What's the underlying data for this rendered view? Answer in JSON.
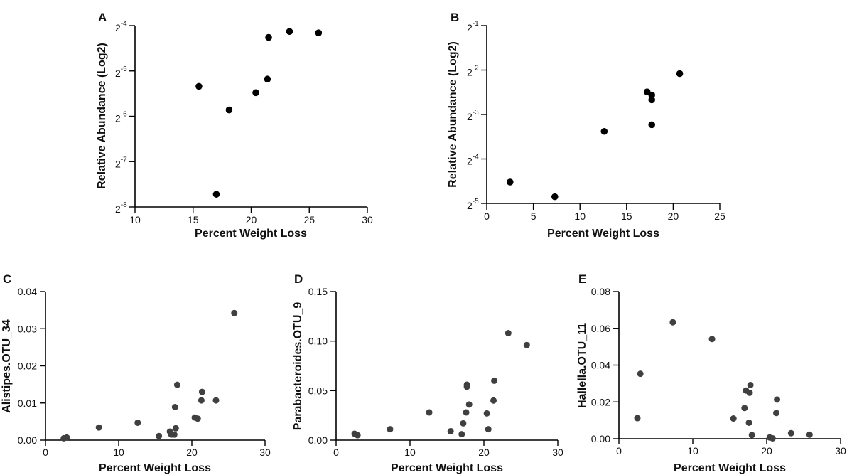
{
  "chart_data": [
    {
      "panel": "A",
      "type": "scatter",
      "title": "",
      "xlabel": "Percent Weight Loss",
      "ylabel": "Relative Abundance  (Log2)",
      "y_scale": "log2",
      "xlim": [
        10,
        30
      ],
      "ylim_exponents": [
        -8,
        -4
      ],
      "x_ticks": [
        10,
        15,
        20,
        25,
        30
      ],
      "y_tick_exponents": [
        -8,
        -7,
        -6,
        -5,
        -4
      ],
      "y_tick_base": "2",
      "y_tick_exp_labels": [
        "-8",
        "-7",
        "-6",
        "-5",
        "-4"
      ],
      "marker_color": "#000000",
      "x": [
        15.5,
        17.0,
        18.1,
        20.4,
        21.4,
        21.5,
        23.3,
        25.8
      ],
      "y_log2": [
        -5.34,
        -7.72,
        -5.86,
        -5.48,
        -5.18,
        -4.26,
        -4.13,
        -4.16
      ]
    },
    {
      "panel": "B",
      "type": "scatter",
      "title": "",
      "xlabel": "Percent Weight Loss",
      "ylabel": "Relative Abundance  (Log2)",
      "y_scale": "log2",
      "xlim": [
        0,
        25
      ],
      "ylim_exponents": [
        -5,
        -1
      ],
      "x_ticks": [
        0,
        5,
        10,
        15,
        20,
        25
      ],
      "y_tick_exponents": [
        -5,
        -4,
        -3,
        -2,
        -1
      ],
      "y_tick_base": "2",
      "y_tick_exp_labels": [
        "-5",
        "-4",
        "-3",
        "-2",
        "-1"
      ],
      "marker_color": "#000000",
      "x": [
        2.5,
        7.3,
        12.6,
        17.2,
        17.7,
        17.7,
        17.7,
        20.7
      ],
      "y_log2": [
        -4.52,
        -4.85,
        -3.38,
        -2.49,
        -2.56,
        -2.67,
        -3.23,
        -2.08
      ]
    },
    {
      "panel": "C",
      "type": "scatter",
      "title": "",
      "xlabel": "Percent Weight Loss",
      "ylabel": "Alistipes.OTU_34",
      "xlim": [
        0,
        30
      ],
      "ylim": [
        0,
        0.04
      ],
      "x_ticks": [
        0,
        10,
        20,
        30
      ],
      "y_ticks": [
        0,
        0.01,
        0.02,
        0.03,
        0.04
      ],
      "y_tick_labels": [
        "0.00",
        "0.01",
        "0.02",
        "0.03",
        "0.04"
      ],
      "marker_color": "#404040",
      "x": [
        2.5,
        2.9,
        7.3,
        12.6,
        15.5,
        17.0,
        17.2,
        17.6,
        17.7,
        17.8,
        18.0,
        20.4,
        20.8,
        21.3,
        21.4,
        23.3,
        25.8
      ],
      "y": [
        0.0005,
        0.0007,
        0.0034,
        0.0047,
        0.0011,
        0.0023,
        0.0015,
        0.0015,
        0.0089,
        0.0032,
        0.0149,
        0.0061,
        0.0058,
        0.0107,
        0.013,
        0.0107,
        0.0342
      ]
    },
    {
      "panel": "D",
      "type": "scatter",
      "title": "",
      "xlabel": "Percent Weight Loss",
      "ylabel": "Parabacteroides.OTU_9",
      "xlim": [
        0,
        30
      ],
      "ylim": [
        0,
        0.15
      ],
      "x_ticks": [
        0,
        10,
        20,
        30
      ],
      "y_ticks": [
        0,
        0.05,
        0.1,
        0.15
      ],
      "y_tick_labels": [
        "0.00",
        "0.05",
        "0.10",
        "0.15"
      ],
      "marker_color": "#404040",
      "x": [
        2.5,
        2.9,
        7.3,
        12.6,
        15.5,
        17.0,
        17.2,
        17.6,
        17.7,
        17.7,
        18.0,
        20.4,
        20.6,
        21.3,
        21.4,
        23.3,
        25.8
      ],
      "y": [
        0.0065,
        0.005,
        0.011,
        0.028,
        0.009,
        0.006,
        0.017,
        0.028,
        0.054,
        0.056,
        0.036,
        0.027,
        0.011,
        0.04,
        0.06,
        0.108,
        0.096
      ]
    },
    {
      "panel": "E",
      "type": "scatter",
      "title": "",
      "xlabel": "Percent Weight Loss",
      "ylabel": "Hallella.OTU_11",
      "xlim": [
        0,
        30
      ],
      "ylim": [
        0,
        0.08
      ],
      "x_ticks": [
        0,
        10,
        20,
        30
      ],
      "y_ticks": [
        0,
        0.02,
        0.04,
        0.06,
        0.08
      ],
      "y_tick_labels": [
        "0.00",
        "0.02",
        "0.04",
        "0.06",
        "0.08"
      ],
      "marker_color": "#404040",
      "x": [
        2.5,
        2.9,
        7.3,
        12.6,
        15.5,
        17.0,
        17.2,
        17.6,
        17.7,
        17.8,
        18.0,
        20.4,
        20.8,
        21.3,
        21.4,
        23.3,
        25.8
      ],
      "y": [
        0.0112,
        0.0353,
        0.0633,
        0.0542,
        0.011,
        0.0167,
        0.0262,
        0.0087,
        0.025,
        0.0292,
        0.002,
        0.0007,
        0.0002,
        0.014,
        0.0213,
        0.003,
        0.0022
      ]
    }
  ]
}
